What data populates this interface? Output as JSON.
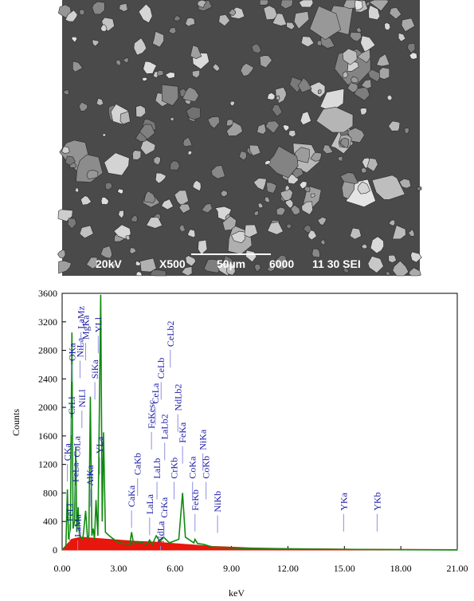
{
  "micrograph": {
    "annotations": [
      "20kV",
      "X500",
      "50µm",
      "6000",
      "11 30 SEI"
    ]
  },
  "chart_data": {
    "type": "line",
    "xlabel": "keV",
    "ylabel": "Counts",
    "xlim": [
      0,
      21
    ],
    "ylim": [
      0,
      3600
    ],
    "xticks": [
      {
        "value": 0,
        "label": "0.00"
      },
      {
        "value": 3,
        "label": "3.00"
      },
      {
        "value": 6,
        "label": "6.00"
      },
      {
        "value": 9,
        "label": "9.00"
      },
      {
        "value": 12,
        "label": "12.00"
      },
      {
        "value": 15,
        "label": "15.00"
      },
      {
        "value": 18,
        "label": "18.00"
      },
      {
        "value": 21,
        "label": "21.00"
      }
    ],
    "yticks": [
      0,
      400,
      800,
      1200,
      1600,
      2000,
      2400,
      2800,
      3200,
      3600
    ],
    "series": [
      {
        "name": "background",
        "color": "#e8160c",
        "fill": true,
        "x": [
          0,
          0.5,
          1,
          2,
          3,
          4,
          5,
          6,
          7,
          8,
          9,
          10,
          12,
          14,
          16,
          18,
          21
        ],
        "values": [
          0,
          150,
          180,
          160,
          140,
          120,
          110,
          90,
          70,
          50,
          40,
          30,
          20,
          15,
          10,
          8,
          5
        ]
      },
      {
        "name": "spectrum",
        "color": "#0f8a0f",
        "fill": false,
        "x": [
          0,
          0.2,
          0.28,
          0.34,
          0.44,
          0.52,
          0.58,
          0.66,
          0.72,
          0.78,
          0.85,
          0.92,
          1.1,
          1.25,
          1.35,
          1.42,
          1.5,
          1.58,
          1.65,
          1.72,
          1.8,
          1.9,
          2.05,
          2.13,
          2.2,
          2.3,
          2.5,
          3.0,
          3.6,
          3.69,
          3.8,
          4.0,
          4.5,
          4.65,
          4.8,
          5.0,
          5.2,
          5.4,
          5.7,
          6.2,
          6.4,
          6.55,
          7.0,
          7.06,
          7.2,
          7.5,
          8.0,
          10,
          14,
          21
        ],
        "values": [
          0,
          60,
          850,
          150,
          300,
          3050,
          300,
          400,
          1450,
          250,
          600,
          200,
          150,
          550,
          150,
          200,
          2150,
          200,
          300,
          150,
          700,
          200,
          3580,
          400,
          1650,
          250,
          200,
          100,
          80,
          250,
          80,
          120,
          80,
          140,
          80,
          200,
          120,
          180,
          100,
          150,
          800,
          180,
          100,
          150,
          90,
          80,
          40,
          20,
          10,
          0
        ]
      }
    ],
    "label_color": "#1c1ca8",
    "peak_labels": [
      {
        "label": "CKa",
        "x": 0.28,
        "y": 1250
      },
      {
        "label": "FeLl",
        "x": 0.4,
        "y": 400
      },
      {
        "label": "OKa",
        "x": 0.52,
        "y": 2650
      },
      {
        "label": "CrLl",
        "x": 0.5,
        "y": 1900
      },
      {
        "label": "FeLa",
        "x": 0.7,
        "y": 950
      },
      {
        "label": "LaMa",
        "x": 0.83,
        "y": 180
      },
      {
        "label": "CoLa",
        "x": 0.78,
        "y": 1300
      },
      {
        "label": "NiLl",
        "x": 1.05,
        "y": 2000
      },
      {
        "label": "NiLa",
        "x": 0.95,
        "y": 2700
      },
      {
        "label": "LaMz",
        "x": 1.0,
        "y": 3100
      },
      {
        "label": "MgKa",
        "x": 1.25,
        "y": 2950
      },
      {
        "label": "AlKa",
        "x": 1.49,
        "y": 900
      },
      {
        "label": "SiKa",
        "x": 1.74,
        "y": 2400
      },
      {
        "label": "YLl",
        "x": 1.92,
        "y": 3050
      },
      {
        "label": "YLa",
        "x": 2.0,
        "y": 1350
      },
      {
        "label": "CaKa",
        "x": 3.69,
        "y": 600
      },
      {
        "label": "CaKb",
        "x": 4.01,
        "y": 1050
      },
      {
        "label": "LaLa",
        "x": 4.65,
        "y": 500
      },
      {
        "label": "FeKesc",
        "x": 4.75,
        "y": 1700
      },
      {
        "label": "NdLa",
        "x": 5.23,
        "y": 100
      },
      {
        "label": "LaLb",
        "x": 5.04,
        "y": 1000
      },
      {
        "label": "CeLa",
        "x": 4.95,
        "y": 2050
      },
      {
        "label": "CrKa",
        "x": 5.41,
        "y": 450
      },
      {
        "label": "LaLb2",
        "x": 5.45,
        "y": 1550
      },
      {
        "label": "CeLb",
        "x": 5.26,
        "y": 2400
      },
      {
        "label": "CeLb2",
        "x": 5.75,
        "y": 2850
      },
      {
        "label": "CrKb",
        "x": 5.95,
        "y": 1000
      },
      {
        "label": "NdLb2",
        "x": 6.15,
        "y": 1950
      },
      {
        "label": "FeKa",
        "x": 6.4,
        "y": 1500
      },
      {
        "label": "FeKb",
        "x": 7.06,
        "y": 550
      },
      {
        "label": "CoKa",
        "x": 6.93,
        "y": 1000
      },
      {
        "label": "NiKa",
        "x": 7.48,
        "y": 1400
      },
      {
        "label": "CoKb",
        "x": 7.65,
        "y": 1000
      },
      {
        "label": "NiKb",
        "x": 8.26,
        "y": 530
      },
      {
        "label": "YKa",
        "x": 14.96,
        "y": 550
      },
      {
        "label": "YKb",
        "x": 16.74,
        "y": 550
      }
    ]
  }
}
